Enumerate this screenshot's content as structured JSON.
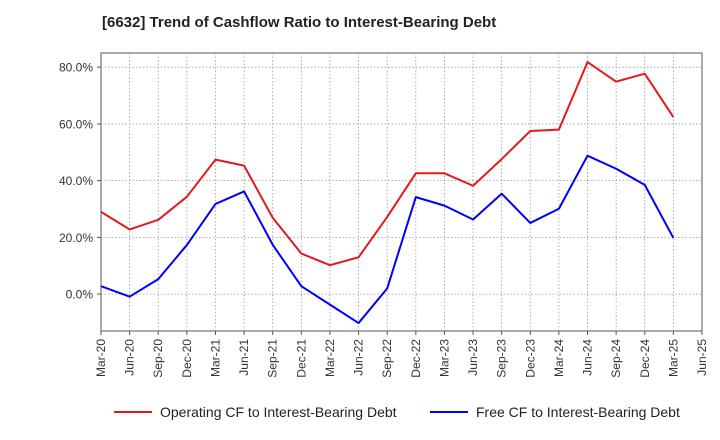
{
  "chart_data": {
    "type": "line",
    "title": "[6632]  Trend of Cashflow Ratio to Interest-Bearing Debt",
    "xlabel": "",
    "ylabel": "",
    "categories": [
      "Mar-20",
      "Jun-20",
      "Sep-20",
      "Dec-20",
      "Mar-21",
      "Jun-21",
      "Sep-21",
      "Dec-21",
      "Mar-22",
      "Jun-22",
      "Sep-22",
      "Dec-22",
      "Mar-23",
      "Jun-23",
      "Sep-23",
      "Dec-23",
      "Mar-24",
      "Jun-24",
      "Sep-24",
      "Dec-24",
      "Mar-25",
      "Jun-25"
    ],
    "ylim": [
      -13,
      85
    ],
    "yticks": [
      0,
      20,
      40,
      60,
      80
    ],
    "ytick_labels": [
      "0.0%",
      "20.0%",
      "40.0%",
      "60.0%",
      "80.0%"
    ],
    "grid": true,
    "legend_position": "bottom",
    "series": [
      {
        "name": "Operating CF to Interest-Bearing Debt",
        "color": "#e31a1c",
        "values": [
          29.0,
          22.8,
          26.2,
          34.3,
          47.4,
          45.3,
          26.9,
          14.3,
          10.2,
          13.0,
          27.2,
          42.6,
          42.6,
          38.2,
          47.6,
          57.5,
          58.0,
          81.8,
          74.9,
          77.7,
          62.4,
          null
        ]
      },
      {
        "name": "Free CF to Interest-Bearing Debt",
        "color": "#0000ff",
        "values": [
          2.8,
          -0.9,
          5.3,
          17.3,
          31.8,
          36.2,
          17.4,
          2.8,
          -3.7,
          -10.2,
          2.0,
          34.2,
          31.2,
          26.3,
          35.4,
          25.1,
          30.1,
          48.8,
          44.2,
          38.5,
          19.8,
          null
        ]
      }
    ]
  },
  "legend": {
    "items": [
      {
        "label": "Operating CF to Interest-Bearing Debt",
        "color": "#e31a1c"
      },
      {
        "label": "Free CF to Interest-Bearing Debt",
        "color": "#0000ff"
      }
    ]
  }
}
